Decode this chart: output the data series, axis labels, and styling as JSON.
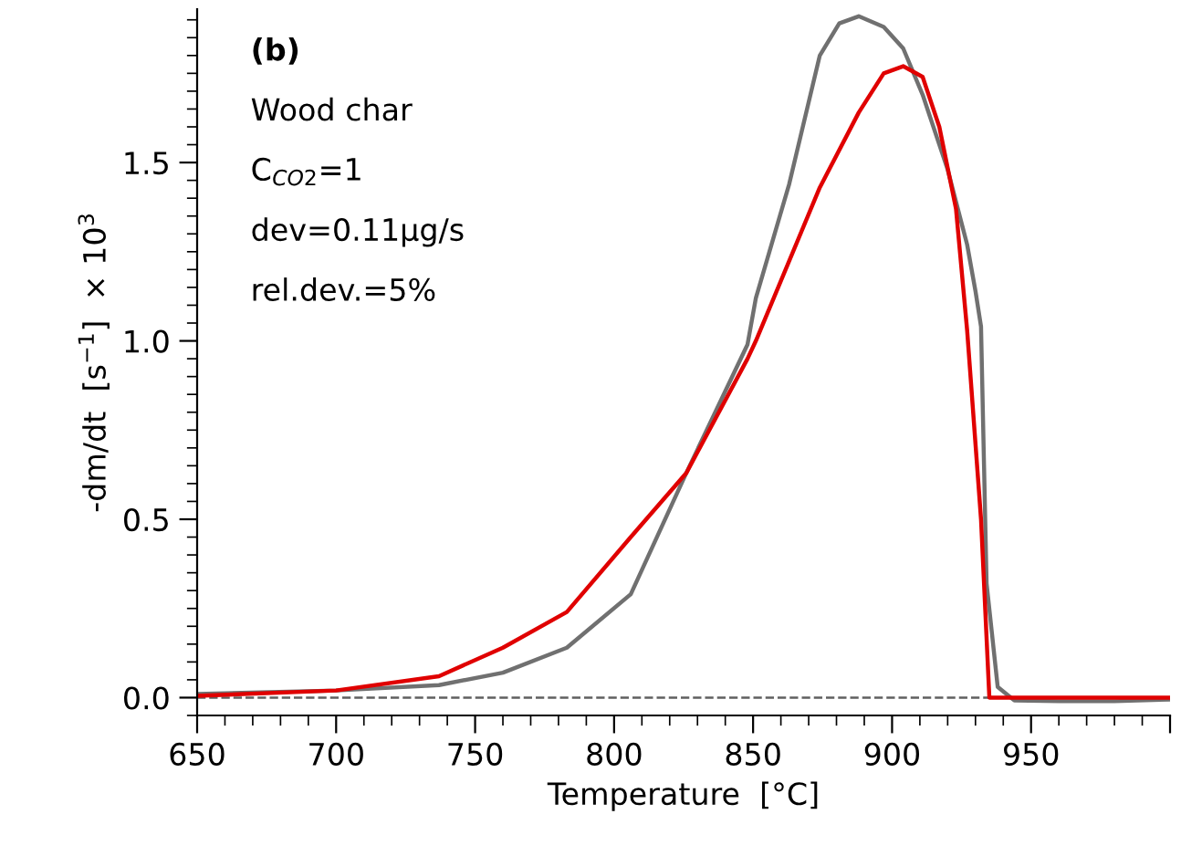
{
  "chart_data": {
    "type": "line",
    "xlabel": "Temperature  [°C]",
    "ylabel": "-dm/dt  [s$^{−1}$]  × 10$^{3}$",
    "xlim": [
      650,
      1000
    ],
    "ylim": [
      -0.05,
      1.93
    ],
    "xticks": [
      650,
      700,
      750,
      800,
      850,
      900,
      950,
      {
        "value": 1000,
        "label": null
      }
    ],
    "yticks": [
      {
        "value": 0,
        "label": "0.0"
      },
      0.5,
      {
        "value": 1,
        "label": "1.0"
      },
      1.5
    ],
    "grid": false,
    "legend": false,
    "marker": "none",
    "line_style": "solid",
    "ref_lines": [
      {
        "axis": "y",
        "value": 0,
        "color": "#606060",
        "line_style": "dashed"
      }
    ],
    "annotations": [
      "(b)",
      "Wood char",
      "C$_{CO2}$=1",
      "dev=0.11µg/s",
      "rel.dev.=5%"
    ],
    "series": [
      {
        "color": "#707070",
        "x": [
          650,
          700,
          737,
          760,
          783,
          806,
          826,
          848,
          851,
          863,
          874,
          881,
          888,
          897,
          904,
          911,
          920,
          927,
          930,
          932,
          934,
          938,
          944,
          960,
          980,
          1000
        ],
        "values": [
          0.01,
          0.02,
          0.035,
          0.07,
          0.14,
          0.29,
          0.63,
          0.99,
          1.12,
          1.44,
          1.8,
          1.89,
          1.91,
          1.88,
          1.82,
          1.69,
          1.48,
          1.27,
          1.14,
          1.04,
          0.32,
          0.03,
          -0.008,
          -0.01,
          -0.01,
          -0.005
        ]
      },
      {
        "color": "#e00000",
        "x": [
          650,
          700,
          737,
          760,
          783,
          806,
          826,
          848,
          851,
          874,
          888,
          897,
          904,
          911,
          917,
          923,
          927,
          932,
          935,
          950,
          1000
        ],
        "values": [
          0.005,
          0.02,
          0.06,
          0.14,
          0.24,
          0.45,
          0.63,
          0.95,
          1.0,
          1.43,
          1.64,
          1.75,
          1.77,
          1.74,
          1.6,
          1.37,
          1.03,
          0.5,
          0.0,
          0.0,
          0.0
        ]
      }
    ]
  }
}
